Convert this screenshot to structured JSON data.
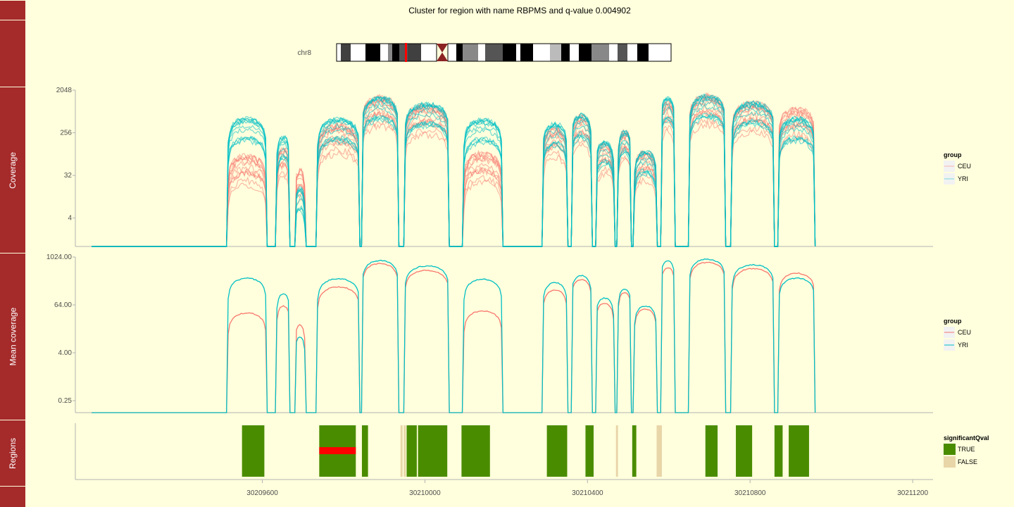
{
  "title": "Cluster for region with name RBPMS and q-value 0.004902",
  "track_labels": [
    "",
    "Coverage",
    "Mean coverage",
    "Regions",
    ""
  ],
  "ideogram": {
    "chromosome": "chr8",
    "highlight_color": "#FF0000",
    "centromere_color": "#8B2323"
  },
  "colors": {
    "CEU": "#F8766D",
    "YRI": "#00BFC4",
    "TRUE": "#4A8C00",
    "FALSE": "#E8D5A8",
    "sidebar": "#A52A2A"
  },
  "chart_data": [
    {
      "type": "line",
      "name": "Coverage",
      "ylabel": "Coverage",
      "y_scale": "log2",
      "y_ticks": [
        "2048",
        "256",
        "32",
        "4"
      ],
      "legend": {
        "title": "group",
        "entries": [
          "CEU",
          "YRI"
        ]
      }
    },
    {
      "type": "line",
      "name": "Mean coverage",
      "ylabel": "Mean coverage",
      "y_scale": "log2",
      "y_ticks": [
        "1024.00",
        "64.00",
        "4.00",
        "0.25"
      ],
      "legend": {
        "title": "group",
        "entries": [
          "CEU",
          "YRI"
        ]
      },
      "x_segments": [
        [
          30209550,
          30209610
        ],
        [
          30209635,
          30209670
        ],
        [
          30209740,
          30209840
        ],
        [
          30209900,
          30210060
        ],
        [
          30210120,
          30210190
        ],
        [
          30210310,
          30210380
        ],
        [
          30210400,
          30210460
        ],
        [
          30210470,
          30210520
        ],
        [
          30210540,
          30210570
        ],
        [
          30210580,
          30210620
        ],
        [
          30210680,
          30210760
        ],
        [
          30210790,
          30210880
        ],
        [
          30210900,
          30210960
        ]
      ],
      "peak_levels_CEU": [
        40,
        60,
        20,
        180,
        700,
        470,
        45,
        150,
        280,
        70,
        130,
        50,
        550,
        750,
        520,
        400
      ],
      "peak_levels_YRI": [
        300,
        120,
        10,
        290,
        830,
        610,
        280,
        230,
        350,
        95,
        160,
        60,
        820,
        900,
        650,
        300
      ]
    },
    {
      "type": "bar",
      "name": "Regions",
      "ylabel": "Regions",
      "legend": {
        "title": "significantQval",
        "entries": [
          "TRUE",
          "FALSE"
        ]
      },
      "regions": [
        {
          "start": 30209550,
          "end": 30209605,
          "significant": "TRUE"
        },
        {
          "start": 30209740,
          "end": 30209830,
          "significant": "TRUE"
        },
        {
          "start": 30209845,
          "end": 30209860,
          "significant": "TRUE"
        },
        {
          "start": 30209940,
          "end": 30209945,
          "significant": "FALSE"
        },
        {
          "start": 30209948,
          "end": 30209953,
          "significant": "FALSE"
        },
        {
          "start": 30209955,
          "end": 30209980,
          "significant": "TRUE"
        },
        {
          "start": 30209983,
          "end": 30210055,
          "significant": "TRUE"
        },
        {
          "start": 30210090,
          "end": 30210160,
          "significant": "TRUE"
        },
        {
          "start": 30210300,
          "end": 30210350,
          "significant": "TRUE"
        },
        {
          "start": 30210395,
          "end": 30210415,
          "significant": "TRUE"
        },
        {
          "start": 30210470,
          "end": 30210475,
          "significant": "FALSE"
        },
        {
          "start": 30210510,
          "end": 30210520,
          "significant": "TRUE"
        },
        {
          "start": 30210570,
          "end": 30210583,
          "significant": "FALSE"
        },
        {
          "start": 30210690,
          "end": 30210720,
          "significant": "TRUE"
        },
        {
          "start": 30210765,
          "end": 30210805,
          "significant": "TRUE"
        },
        {
          "start": 30210860,
          "end": 30210880,
          "significant": "TRUE"
        },
        {
          "start": 30210895,
          "end": 30210945,
          "significant": "TRUE"
        }
      ],
      "highlight": {
        "start": 30209740,
        "end": 30209830,
        "color": "#FF0000"
      }
    }
  ],
  "x_axis": {
    "xlim": [
      30209140,
      30211250
    ],
    "ticks": [
      30209600,
      30210000,
      30210400,
      30210800,
      30211200
    ],
    "tick_labels": [
      "30209600",
      "30210000",
      "30210400",
      "30210800",
      "30211200"
    ]
  }
}
